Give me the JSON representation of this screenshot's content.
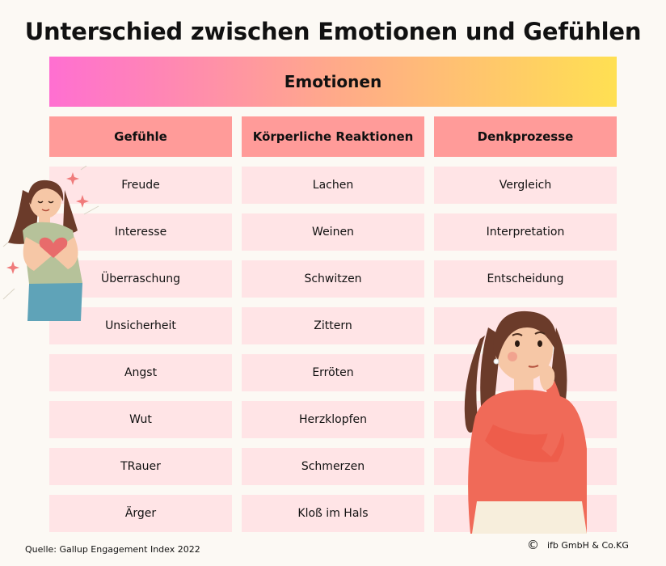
{
  "title": "Unterschied zwischen Emotionen und Gefühlen",
  "banner": "Emotionen",
  "columns": [
    {
      "header": "Gefühle",
      "items": [
        "Freude",
        "Interesse",
        "Überraschung",
        "Unsicherheit",
        "Angst",
        "Wut",
        "TRauer",
        "Ärger"
      ]
    },
    {
      "header": "Körperliche Reaktionen",
      "items": [
        "Lachen",
        "Weinen",
        "Schwitzen",
        "Zittern",
        "Erröten",
        "Herzklopfen",
        "Schmerzen",
        "Kloß im Hals"
      ]
    },
    {
      "header": "Denkprozesse",
      "items": [
        "Vergleich",
        "Interpretation",
        "Entscheidung",
        "",
        "",
        "",
        "",
        ""
      ]
    }
  ],
  "footer": {
    "source": "Quelle: Gallup Engagement Index 2022",
    "copyright_symbol": "©",
    "copyright": "ifb GmbH & Co.KG"
  },
  "colors": {
    "gradient_start": "#ff6fd1",
    "gradient_mid": "#ffa98a",
    "gradient_end": "#ffe052",
    "header_cell": "#ff9b99",
    "body_cell": "#ffe4e6",
    "background": "#fcf9f4"
  },
  "illustrations": [
    "woman-holding-heart-icon",
    "thinking-woman-icon"
  ]
}
